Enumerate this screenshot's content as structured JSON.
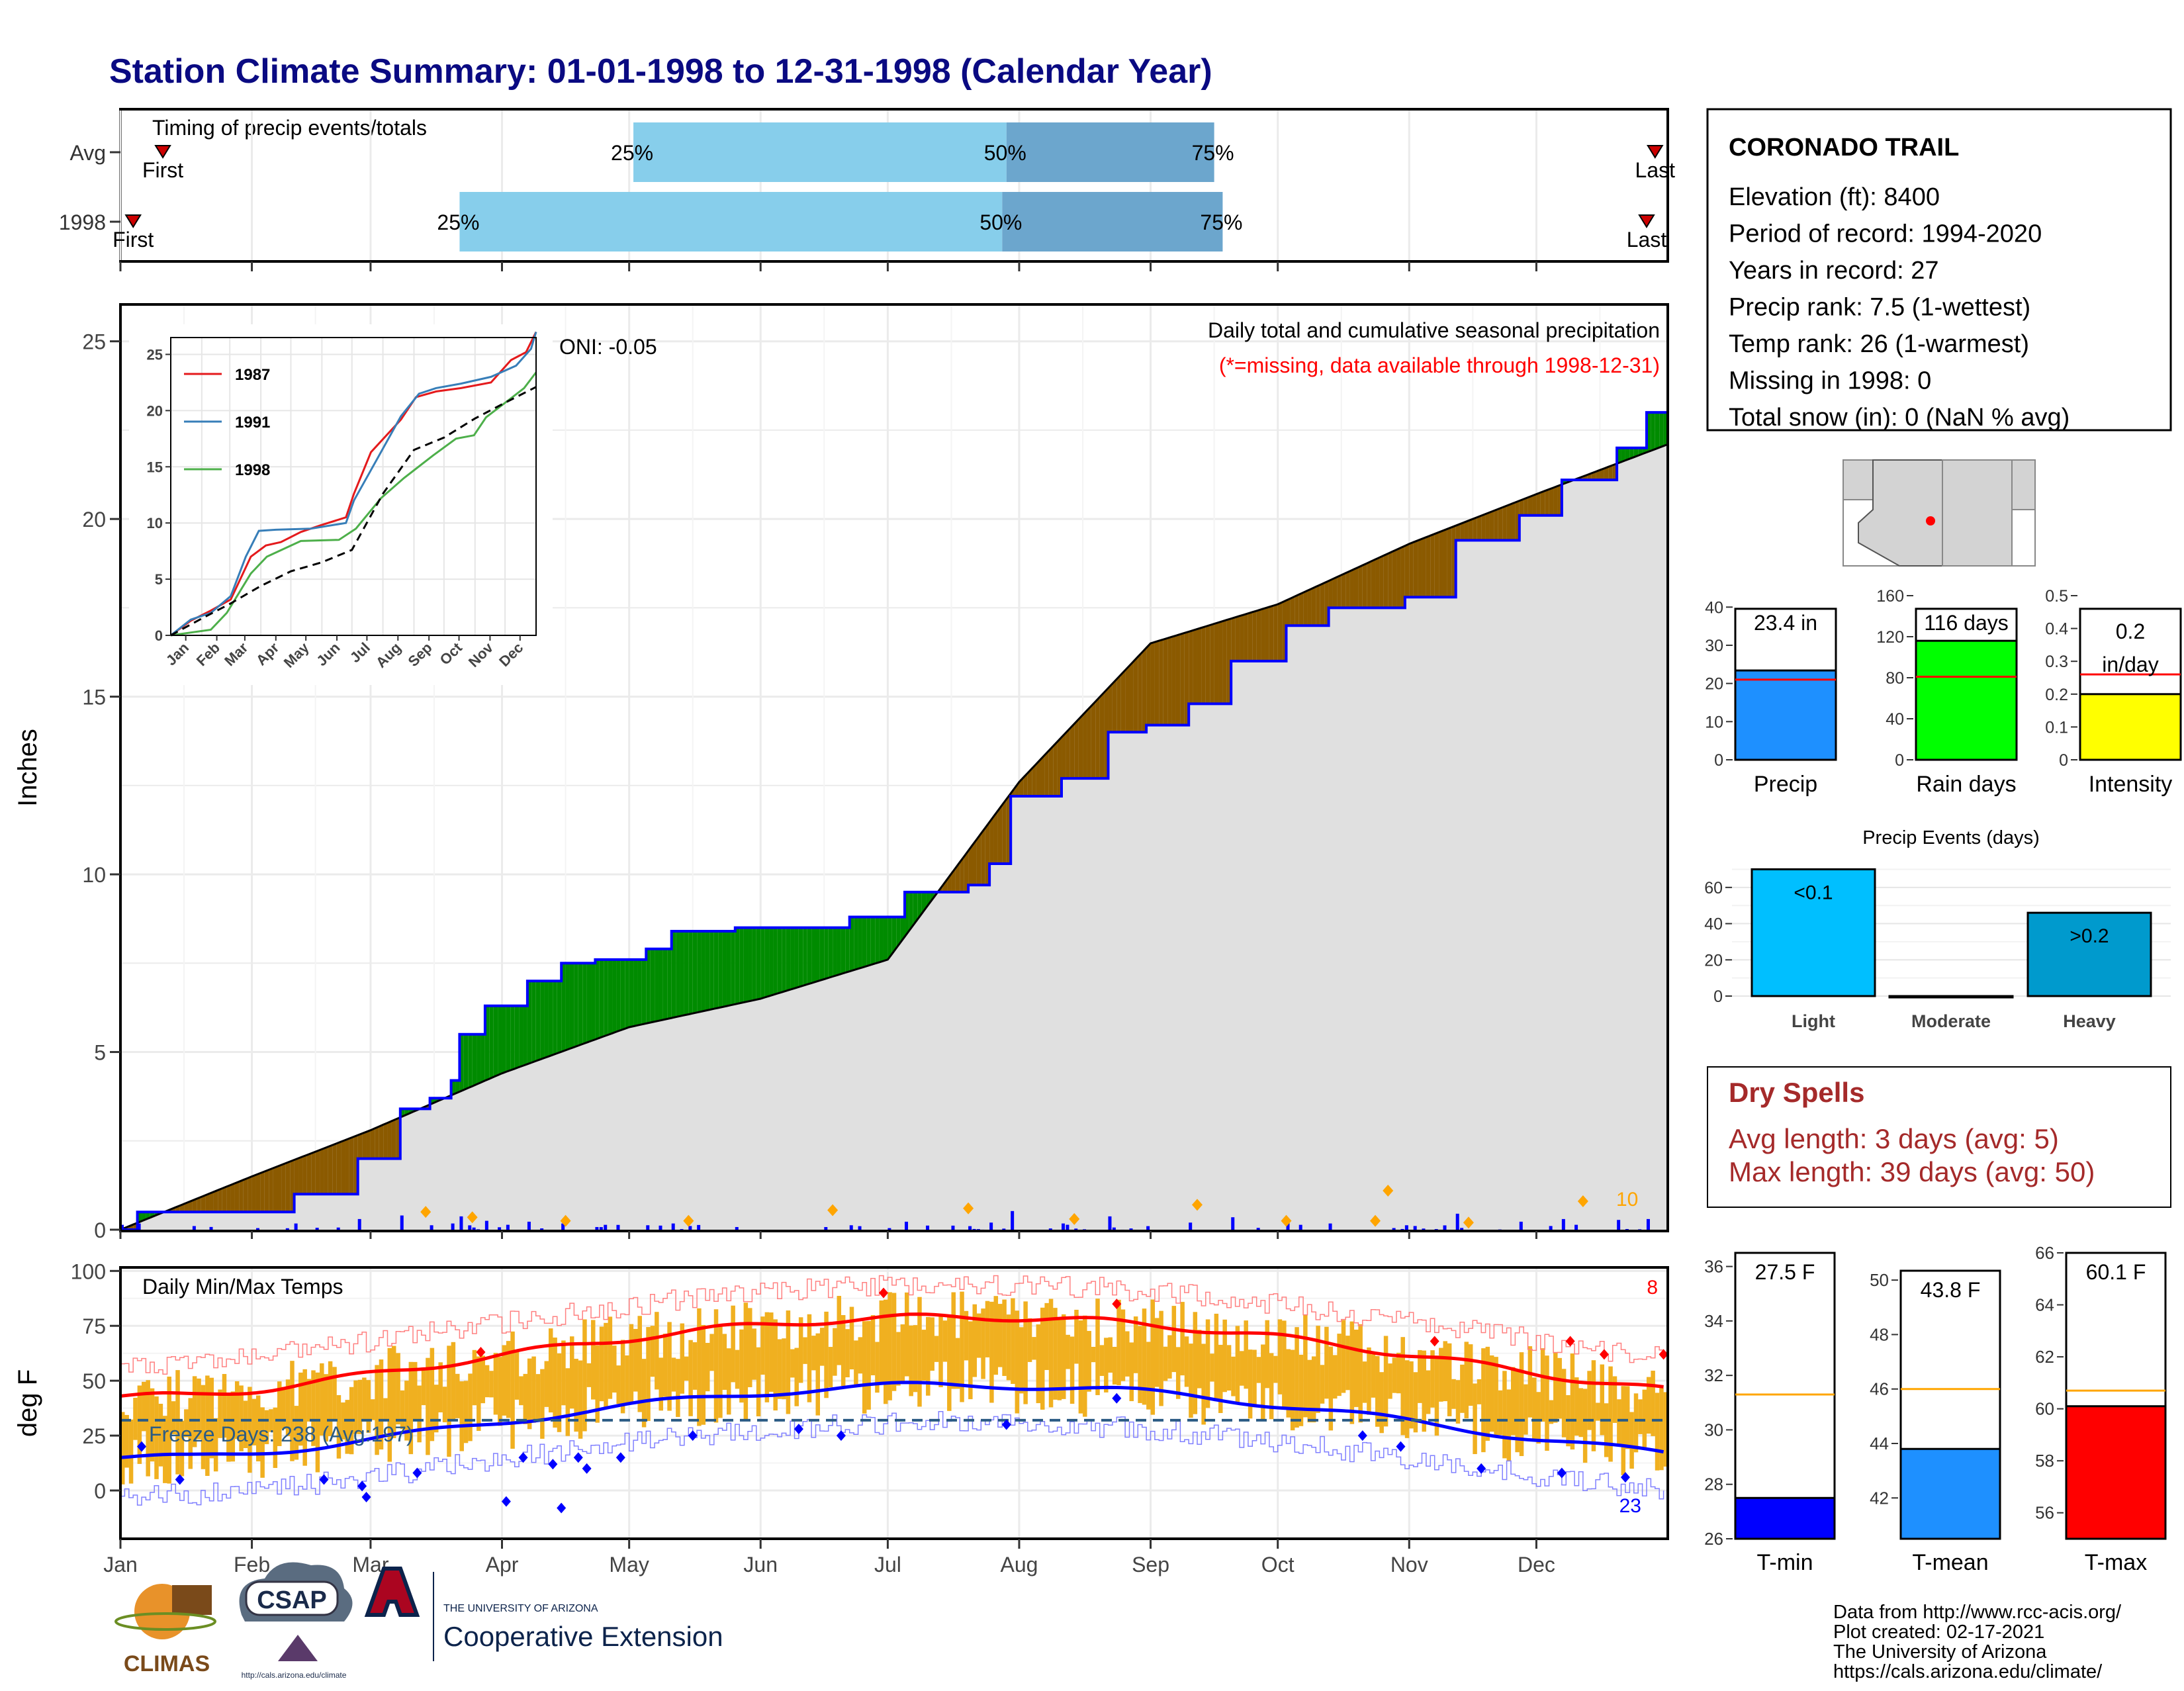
{
  "title": "Station Climate Summary: 01-01-1998 to 12-31-1998 (Calendar Year)",
  "colors": {
    "title": "#0a0a82",
    "light_bar": "#87ceeb",
    "dark_bar": "#6ca6cd",
    "cum_fill": "#e0e0e0",
    "wet": "#008b00",
    "dry": "#8b5a00",
    "precip_line": "#0000ff",
    "marker": "#ffa500",
    "temp_bar": "#f0b020",
    "tmax": "#ff0000",
    "tmin": "#0000ff",
    "freeze": "#2b5b84",
    "dry_spell": "#a52a2a",
    "avg_orange": "#ffa500"
  },
  "timing": {
    "title": "Timing of precip events/totals",
    "rows": [
      {
        "label": "Avg",
        "first_label": "First",
        "last_label": "Last",
        "first_day": 10,
        "q25_day": 121,
        "q50_day": 209,
        "q75_day": 258,
        "last_day": 362
      },
      {
        "label": "1998",
        "first_label": "First",
        "last_label": "Last",
        "first_day": 3,
        "q25_day": 80,
        "q50_day": 208,
        "q75_day": 260,
        "last_day": 360
      }
    ],
    "q_labels": [
      "25%",
      "50%",
      "75%"
    ]
  },
  "main_precip": {
    "ylabel": "Inches",
    "annotation": "Daily total and cumulative seasonal precipitation",
    "missing_note": "(*=missing, data available through 1998-12-31)",
    "oni": "ONI: -0.05",
    "count_label": "10",
    "y_ticks": [
      0,
      5,
      10,
      15,
      20,
      25
    ],
    "y_max": 26
  },
  "inset": {
    "x_months": [
      "Jan",
      "Feb",
      "Mar",
      "Apr",
      "May",
      "Jun",
      "Jul",
      "Aug",
      "Sep",
      "Oct",
      "Nov",
      "Dec"
    ],
    "y_ticks": [
      0,
      5,
      10,
      15,
      20,
      25
    ],
    "legend": [
      {
        "name": "1987",
        "color": "#e41a1c"
      },
      {
        "name": "1991",
        "color": "#377eb8"
      },
      {
        "name": "1998",
        "color": "#4daf4a"
      }
    ]
  },
  "temps": {
    "title": "Daily Min/Max Temps",
    "ylabel": "deg F",
    "freeze_label": "Freeze Days: 238 (Avg:197)",
    "count_max": "8",
    "count_min": "23",
    "y_ticks": [
      0,
      25,
      50,
      75,
      100
    ],
    "x_months": [
      "Jan",
      "Feb",
      "Mar",
      "Apr",
      "May",
      "Jun",
      "Jul",
      "Aug",
      "Sep",
      "Oct",
      "Nov",
      "Dec"
    ]
  },
  "station": {
    "name": "CORONADO TRAIL",
    "lines": [
      "Elevation (ft): 8400",
      "Period of record: 1994-2020",
      "Years in record: 27",
      "Precip rank: 7.5 (1-wettest)",
      "Temp rank: 26 (1-warmest)",
      "Missing in 1998: 0",
      "Total snow (in): 0 (NaN % avg)"
    ]
  },
  "summary_bars": [
    {
      "name": "Precip",
      "label": "23.4 in",
      "value": 23.4,
      "avg": 21,
      "max": 43,
      "ticks": [
        0,
        10,
        20,
        30,
        40
      ],
      "color": "#1e90ff"
    },
    {
      "name": "Rain days",
      "label": "116 days",
      "value": 116,
      "avg": 81,
      "max": 160,
      "ticks": [
        0,
        40,
        80,
        120,
        160
      ],
      "color": "#00ff00"
    },
    {
      "name": "Intensity",
      "label": "0.2 in/day",
      "label_lines": [
        "0.2",
        "in/day"
      ],
      "value": 0.2,
      "avg": 0.26,
      "max": 0.5,
      "ticks": [
        0.0,
        0.1,
        0.2,
        0.3,
        0.4,
        0.5
      ],
      "color": "#ffff00"
    }
  ],
  "events": {
    "title": "Precip Events (days)",
    "categories": [
      "Light",
      "Moderate",
      "Heavy"
    ],
    "bar_labels": [
      "<0.1",
      "",
      ">0.2"
    ],
    "values": [
      70,
      0,
      46
    ],
    "ticks": [
      0,
      20,
      40,
      60
    ],
    "colors": [
      "#00bfff",
      "#0080a0",
      "#009acd"
    ]
  },
  "dry_spells": {
    "title": "Dry Spells",
    "lines": [
      "Avg length: 3 days (avg: 5)",
      "Max length: 39 days (avg: 50)"
    ]
  },
  "temp_bars": [
    {
      "name": "T-min",
      "label": "27.5 F",
      "value": 27.5,
      "avg": 31.3,
      "min": 26,
      "max": 36.5,
      "ticks": [
        26,
        28,
        30,
        32,
        34,
        36
      ],
      "color": "#0000ff"
    },
    {
      "name": "T-mean",
      "label": "43.8 F",
      "value": 43.8,
      "avg": 46,
      "min": 40.5,
      "max": 51,
      "ticks": [
        42,
        44,
        46,
        48,
        50
      ],
      "color": "#1e90ff"
    },
    {
      "name": "T-max",
      "label": "60.1 F",
      "value": 60.1,
      "avg": 60.7,
      "min": 55,
      "max": 66,
      "ticks": [
        56,
        58,
        60,
        62,
        64,
        66
      ],
      "color": "#ff0000"
    }
  ],
  "footer": {
    "lines": [
      "Data from http://www.rcc-acis.org/",
      "Plot created: 02-17-2021",
      "The University of Arizona",
      "https://cals.arizona.edu/climate/"
    ],
    "climas": "CLIMAS",
    "csap": "CSAP",
    "csap_url": "http://cals.arizona.edu/climate",
    "ua_line1": "THE UNIVERSITY OF ARIZONA",
    "ua_line2": "Cooperative Extension"
  }
}
